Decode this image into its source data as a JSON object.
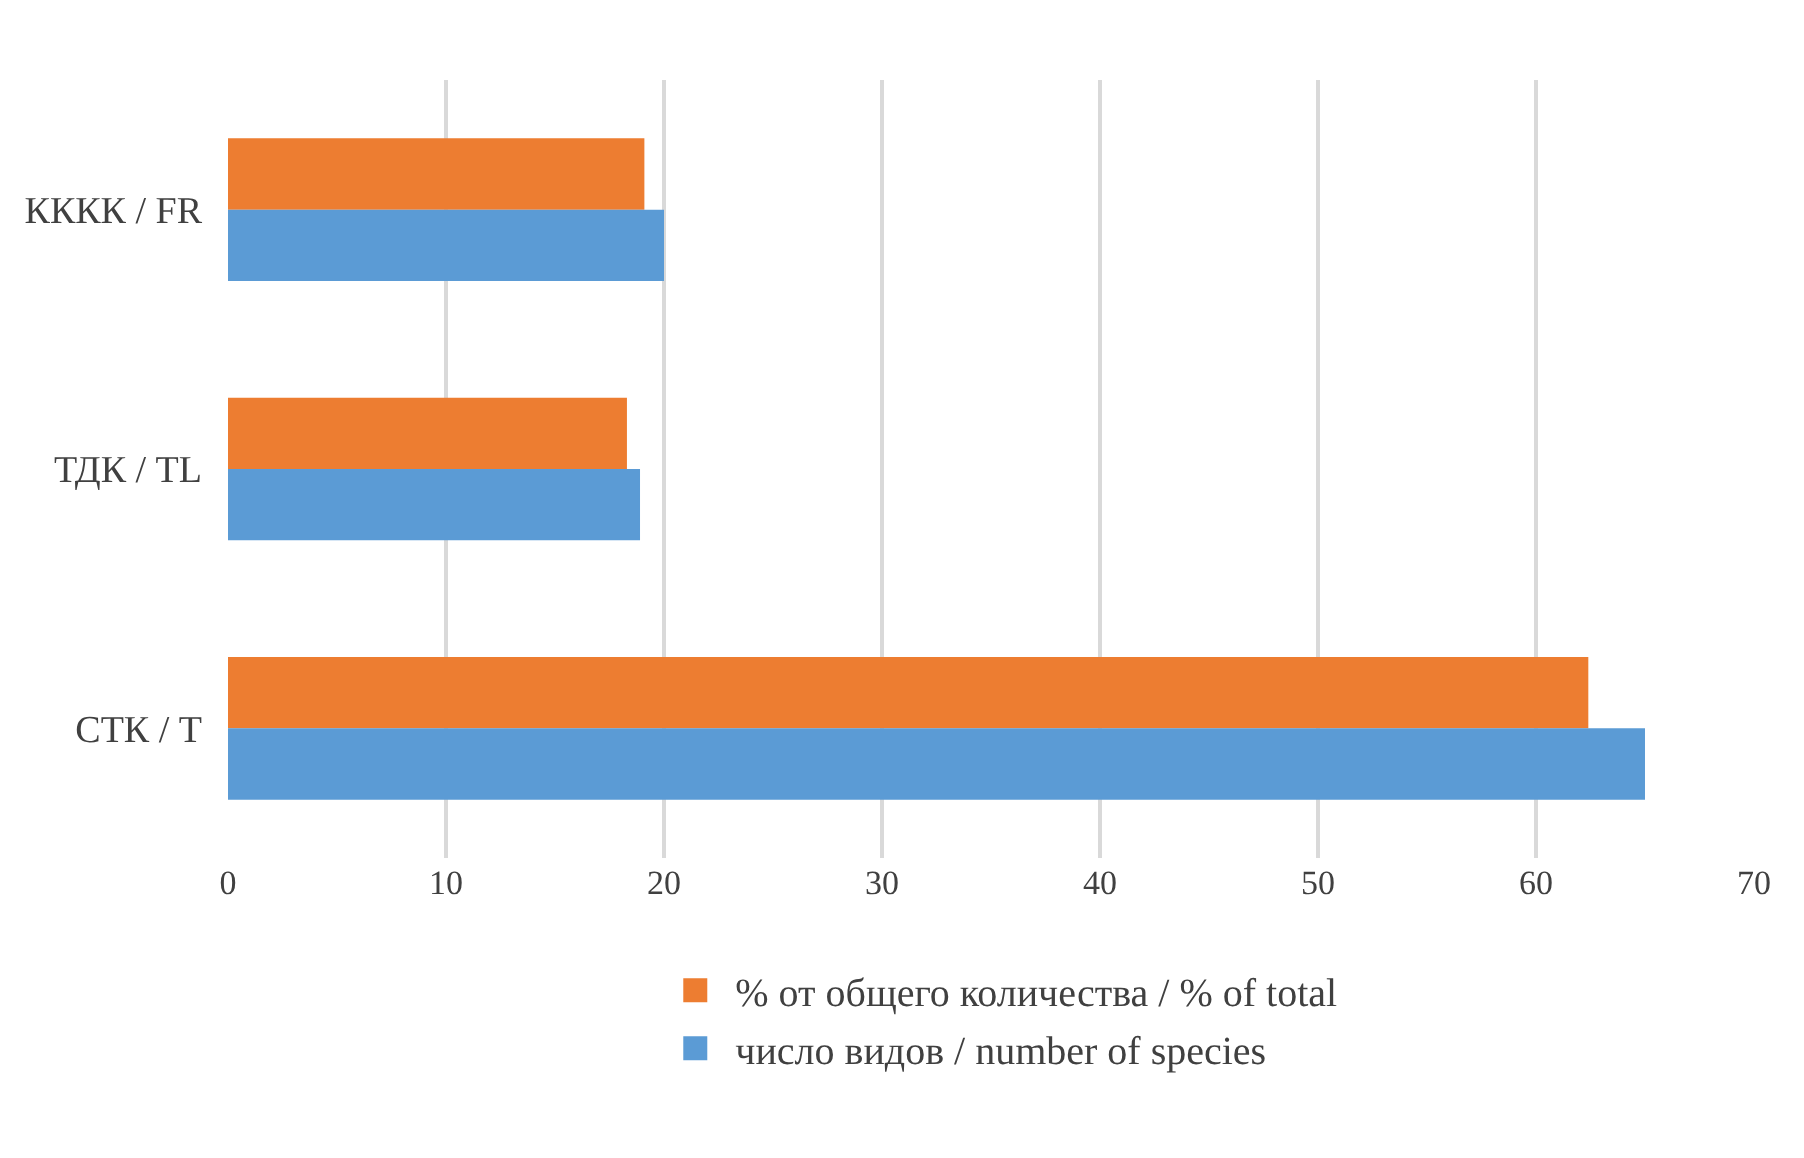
{
  "chart_data": {
    "type": "bar",
    "orientation": "horizontal",
    "categories": [
      "КККК / FR",
      "ТДК / TL",
      "СТК / T"
    ],
    "series": [
      {
        "name": "% от общего количества / % of total",
        "color": "#ed7d31",
        "values": [
          19.1,
          18.3,
          62.4
        ]
      },
      {
        "name": "число видов / number of species",
        "color": "#5b9bd5",
        "values": [
          20.0,
          18.9,
          65.0
        ]
      }
    ],
    "xlim": [
      0,
      70
    ],
    "xticks": [
      0,
      10,
      20,
      30,
      40,
      50,
      60,
      70
    ],
    "grid": "x",
    "legend": "bottom"
  }
}
